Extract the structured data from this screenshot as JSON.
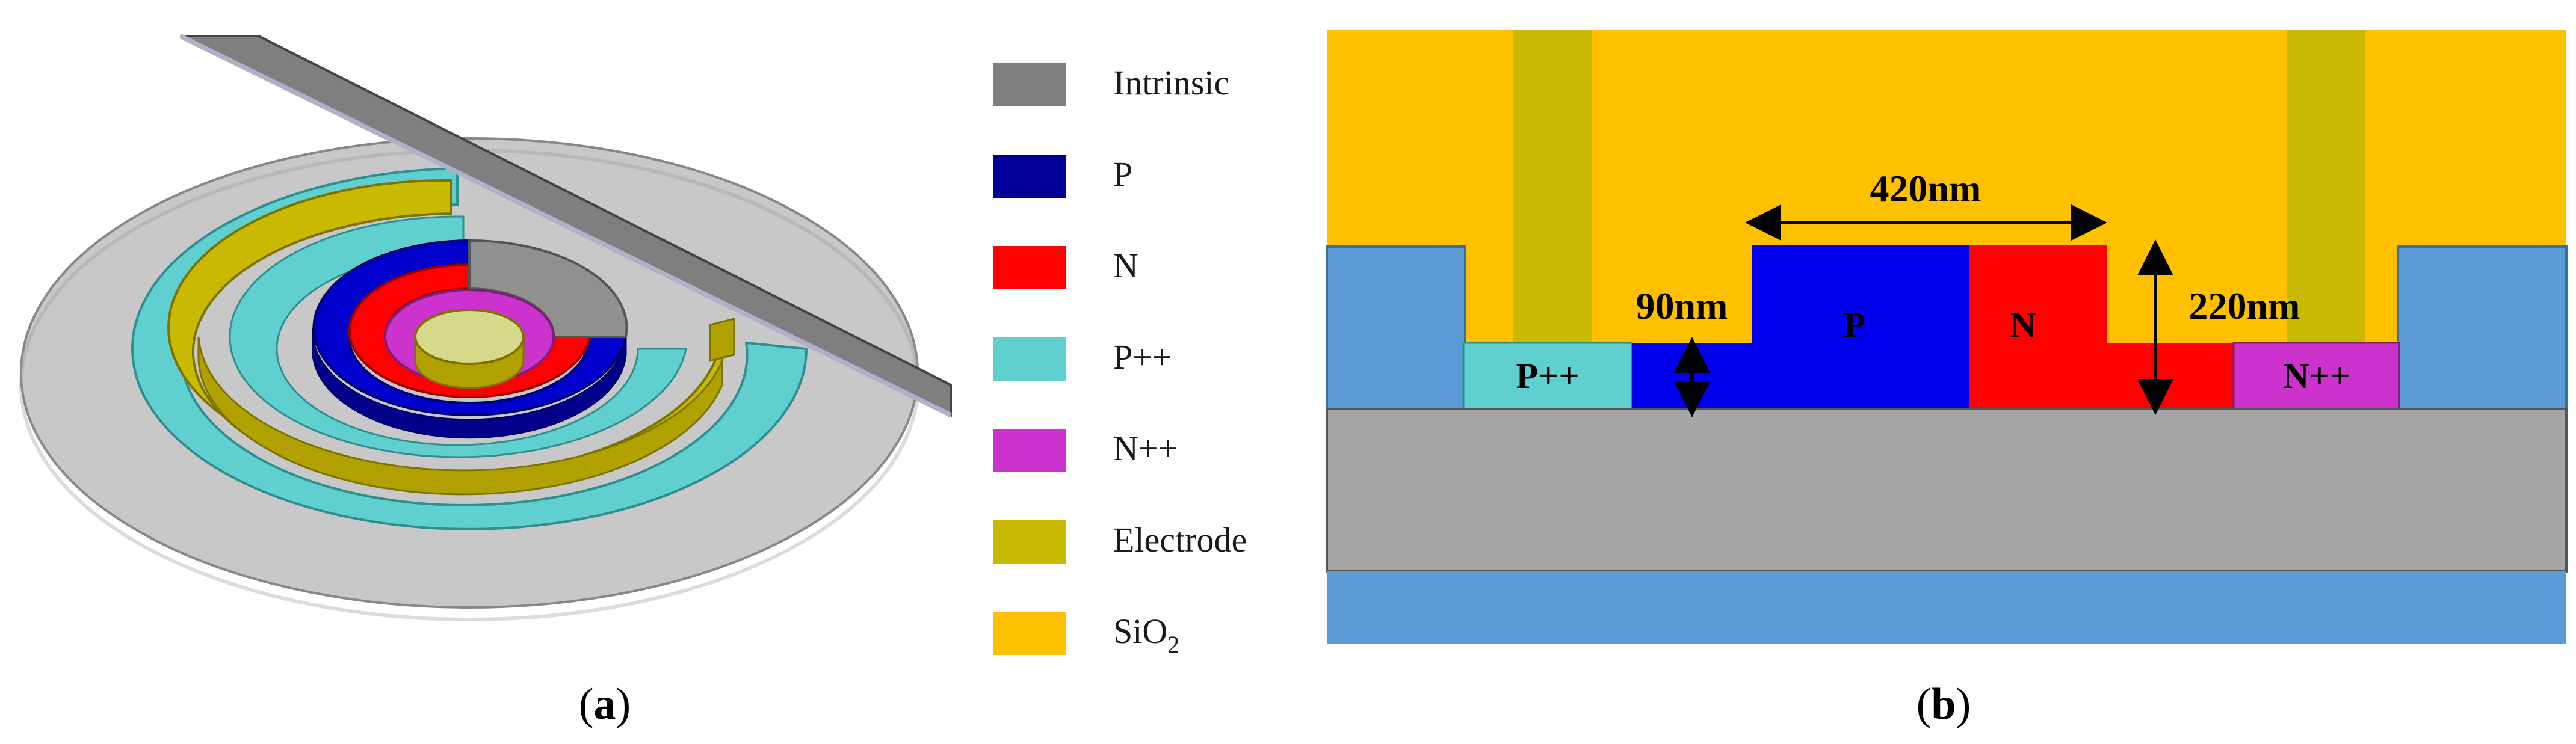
{
  "panel_a": {
    "caption_open": "(",
    "caption_letter": "a",
    "caption_close": ")",
    "legend": [
      {
        "label": "Intrinsic",
        "color": "#808080"
      },
      {
        "label": "P",
        "color": "#000099"
      },
      {
        "label": "N",
        "color": "#ff0000"
      },
      {
        "label": "P++",
        "color": "#5fcfcf"
      },
      {
        "label": "N++",
        "color": "#cc33cc"
      },
      {
        "label": "Electrode",
        "color": "#c9b900"
      },
      {
        "label": "SiO",
        "subscript": "2",
        "color": "#ffc000"
      }
    ]
  },
  "panel_b": {
    "caption_open": "(",
    "caption_letter": "b",
    "caption_close": ")",
    "regions": {
      "p_plus": "P++",
      "p": "P",
      "n": "N",
      "n_plus": "N++"
    },
    "dimensions": {
      "width": "420nm",
      "slab": "90nm",
      "height": "220nm"
    }
  },
  "colors": {
    "sio2": "#ffc000",
    "electrode": "#c9b900",
    "p": "#0000ee",
    "n": "#ff0000",
    "p_plus": "#5fcfcf",
    "n_plus": "#cc33cc",
    "box": "#5b9bd5",
    "substrate": "#a6a6a6",
    "disc": "#c8c8c8"
  }
}
